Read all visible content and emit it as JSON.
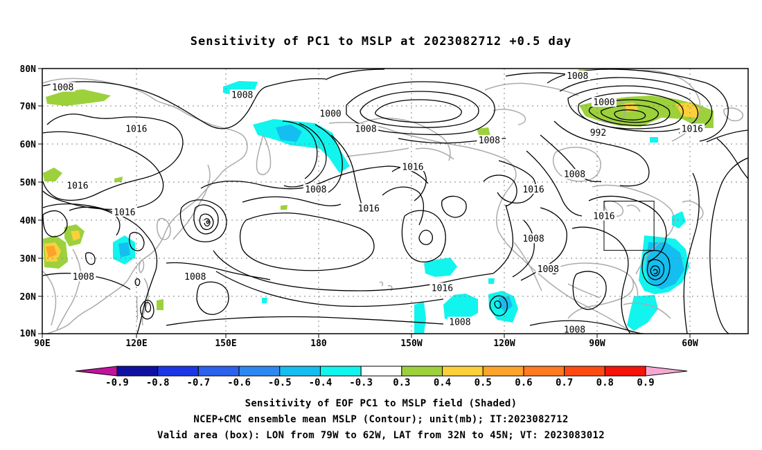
{
  "title": "Sensitivity of PC1 to MSLP at 2023082712 +0.5 day",
  "lat_labels": [
    "80N",
    "70N",
    "60N",
    "50N",
    "40N",
    "30N",
    "20N",
    "10N"
  ],
  "lon_labels": [
    "90E",
    "120E",
    "150E",
    "180",
    "150W",
    "120W",
    "90W",
    "60W"
  ],
  "contour_labels": [
    {
      "text": "1008",
      "lon": 97,
      "lat": 75
    },
    {
      "text": "1008",
      "lon": 158,
      "lat": 73
    },
    {
      "text": "1016",
      "lon": 122,
      "lat": 64
    },
    {
      "text": "1016",
      "lon": 102,
      "lat": 49
    },
    {
      "text": "1016",
      "lon": 118,
      "lat": 42
    },
    {
      "text": "1008",
      "lon": 104,
      "lat": 25
    },
    {
      "text": "1008",
      "lon": 142,
      "lat": 25
    },
    {
      "text": "1000",
      "lon": -172,
      "lat": 68
    },
    {
      "text": "1008",
      "lon": -160,
      "lat": 64
    },
    {
      "text": "1016",
      "lon": -144,
      "lat": 54
    },
    {
      "text": "1008",
      "lon": -177,
      "lat": 48
    },
    {
      "text": "1016",
      "lon": -159,
      "lat": 43
    },
    {
      "text": "1008",
      "lon": -118,
      "lat": 61
    },
    {
      "text": "1016",
      "lon": -103,
      "lat": 48
    },
    {
      "text": "1008",
      "lon": -103,
      "lat": 35
    },
    {
      "text": "1016",
      "lon": -134,
      "lat": 22
    },
    {
      "text": "1008",
      "lon": -128,
      "lat": 13
    },
    {
      "text": "1008",
      "lon": -88,
      "lat": 78
    },
    {
      "text": "1000",
      "lon": -79,
      "lat": 71
    },
    {
      "text": "992",
      "lon": -81,
      "lat": 63
    },
    {
      "text": "1016",
      "lon": -49,
      "lat": 64
    },
    {
      "text": "1008",
      "lon": -89,
      "lat": 52
    },
    {
      "text": "1016",
      "lon": -79,
      "lat": 41
    },
    {
      "text": "1008",
      "lon": -98,
      "lat": 27
    },
    {
      "text": "1008",
      "lon": -89,
      "lat": 11
    }
  ],
  "colorbar": {
    "labels": [
      "-0.9",
      "-0.8",
      "-0.7",
      "-0.6",
      "-0.5",
      "-0.4",
      "-0.3",
      "0.3",
      "0.4",
      "0.5",
      "0.6",
      "0.7",
      "0.8",
      "0.9"
    ],
    "colors": [
      "#1010a0",
      "#1c36e6",
      "#2a62ee",
      "#2e88f2",
      "#14bef0",
      "#12f4ee",
      "#ffffff",
      "#9cd13c",
      "#fcd03a",
      "#fca32a",
      "#ff7a20",
      "#ff4a12",
      "#f4140a"
    ],
    "low_color": "#c0149c",
    "high_color": "#f7a9d2"
  },
  "shade_colors": {
    "neg_0_3": "#12f4ee",
    "neg_0_4": "#14bef0",
    "pos_0_3": "#9cd13c",
    "pos_0_4": "#fcd03a",
    "pos_0_5": "#fca32a"
  },
  "valid_box": {
    "lon_from": -79,
    "lon_to": -62,
    "lat_from": 32,
    "lat_to": 45
  },
  "footer": {
    "line1": "Sensitivity of EOF PC1 to MSLP field (Shaded)",
    "line2": "NCEP+CMC ensemble mean MSLP (Contour); unit(mb); IT:2023082712",
    "line3": "Valid area (box): LON from 79W to 62W, LAT from 32N to 45N; VT: 2023083012"
  }
}
